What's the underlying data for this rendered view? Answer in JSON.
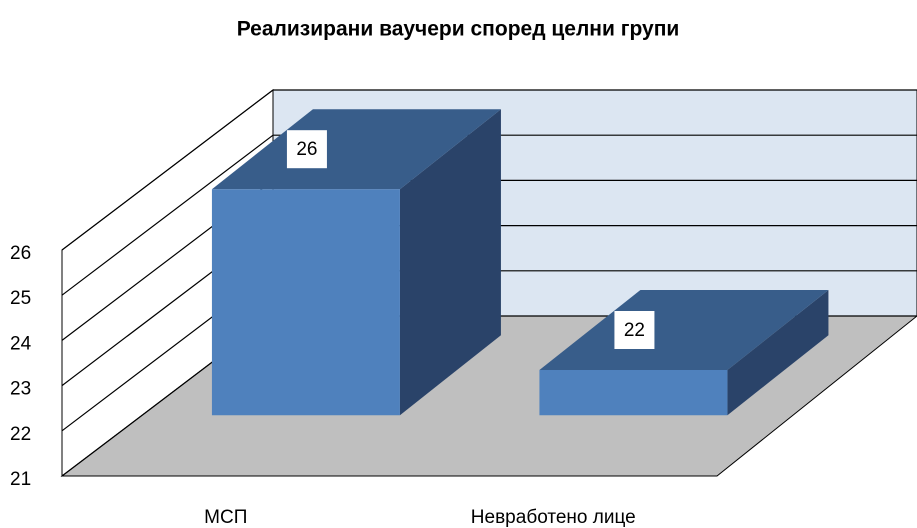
{
  "chart_data": {
    "type": "bar3d",
    "title": "Реализирани ваучери според целни групи",
    "categories": [
      "МСП",
      "Невработено лице"
    ],
    "values": [
      26,
      22
    ],
    "color": "#4f81bd",
    "ylim": [
      21,
      26
    ],
    "yticks": [
      21,
      22,
      23,
      24,
      25,
      26
    ],
    "grid": true
  }
}
